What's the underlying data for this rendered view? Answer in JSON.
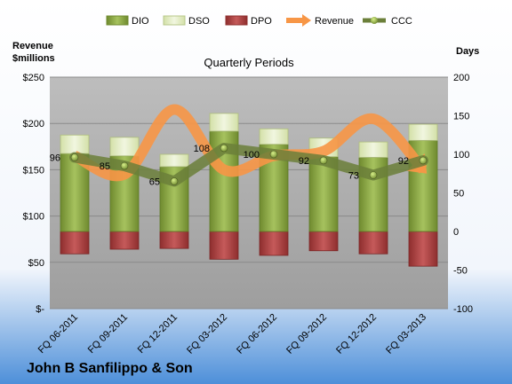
{
  "chart_data": {
    "type": "bar",
    "title": "Quarterly Periods",
    "footer_title": "John B Sanfilippo & Son",
    "left_axis_title_line1": "Revenue",
    "left_axis_title_line2": "$millions",
    "right_axis_title": "Days",
    "categories": [
      "FQ 06-2011",
      "FQ 09-2011",
      "FQ 12-2011",
      "FQ 03-2012",
      "FQ 06-2012",
      "FQ 09-2012",
      "FQ 12-2012",
      "FQ 03-2013"
    ],
    "left_axis": {
      "ylim": [
        0,
        250
      ],
      "ticks": [
        "$-",
        "$50",
        "$100",
        "$150",
        "$200",
        "$250"
      ]
    },
    "right_axis": {
      "ylim": [
        -100,
        200
      ],
      "ticks": [
        "-100",
        "-50",
        "0",
        "50",
        "100",
        "150",
        "200"
      ]
    },
    "series": [
      {
        "name": "DIO",
        "axis": "right",
        "values": [
          101,
          98,
          84,
          130,
          113,
          97,
          96,
          118
        ]
      },
      {
        "name": "DSO",
        "axis": "right",
        "values": [
          24,
          24,
          16,
          23,
          20,
          24,
          20,
          21
        ]
      },
      {
        "name": "DPO",
        "axis": "right",
        "values": [
          -29,
          -23,
          -22,
          -36,
          -31,
          -25,
          -29,
          -45
        ]
      },
      {
        "name": "Revenue",
        "axis": "left",
        "values": [
          165,
          145,
          215,
          150,
          165,
          170,
          205,
          150
        ]
      },
      {
        "name": "CCC",
        "axis": "right",
        "values": [
          96,
          85,
          65,
          108,
          100,
          92,
          73,
          92
        ]
      }
    ],
    "legend_position": "top",
    "grid": true,
    "colors": {
      "DIO": "#8dab46",
      "DSO": "#e3edc4",
      "DPO": "#b24242",
      "Revenue": "#f79646",
      "CCC": "#6b7f3a",
      "plot_bg": "#c0c0c0"
    }
  }
}
